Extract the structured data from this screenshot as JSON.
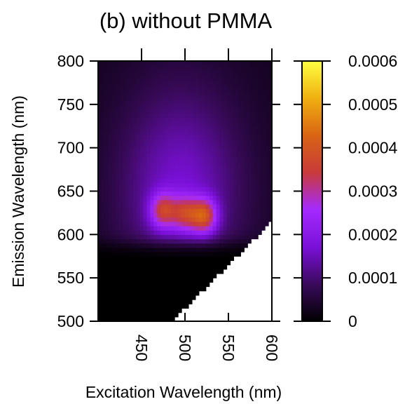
{
  "chart_data": {
    "type": "heatmap",
    "title": "(b) without PMMA",
    "xlabel": "Excitation Wavelength (nm)",
    "ylabel": "Emission Wavelength (nm)",
    "xlim": [
      400,
      600
    ],
    "ylim": [
      500,
      800
    ],
    "x_ticks": [
      "450",
      "500",
      "550",
      "600"
    ],
    "y_ticks": [
      "500",
      "550",
      "600",
      "650",
      "700",
      "750",
      "800"
    ],
    "colorbar": {
      "min": 0,
      "max": 0.0006,
      "ticks": [
        "0",
        "0.0001",
        "0.0002",
        "0.0003",
        "0.0004",
        "0.0005",
        "0.0006"
      ],
      "colormap": [
        "#000000",
        "#3a0a5c",
        "#7a10d8",
        "#a52aff",
        "#c83a3a",
        "#d86414",
        "#f0b010",
        "#ffff40"
      ]
    },
    "measured_region": "emission wavelength above excitation wavelength + 15 nm",
    "peaks": [
      {
        "excitation": 522,
        "emission": 622,
        "intensity": 0.00031
      },
      {
        "excitation": 475,
        "emission": 628,
        "intensity": 0.00025
      },
      {
        "excitation": 500,
        "emission": 625,
        "intensity": 0.00022
      }
    ],
    "background": {
      "emission_band_min": 590,
      "emission_band_max": 800,
      "level": 0.00012
    }
  }
}
